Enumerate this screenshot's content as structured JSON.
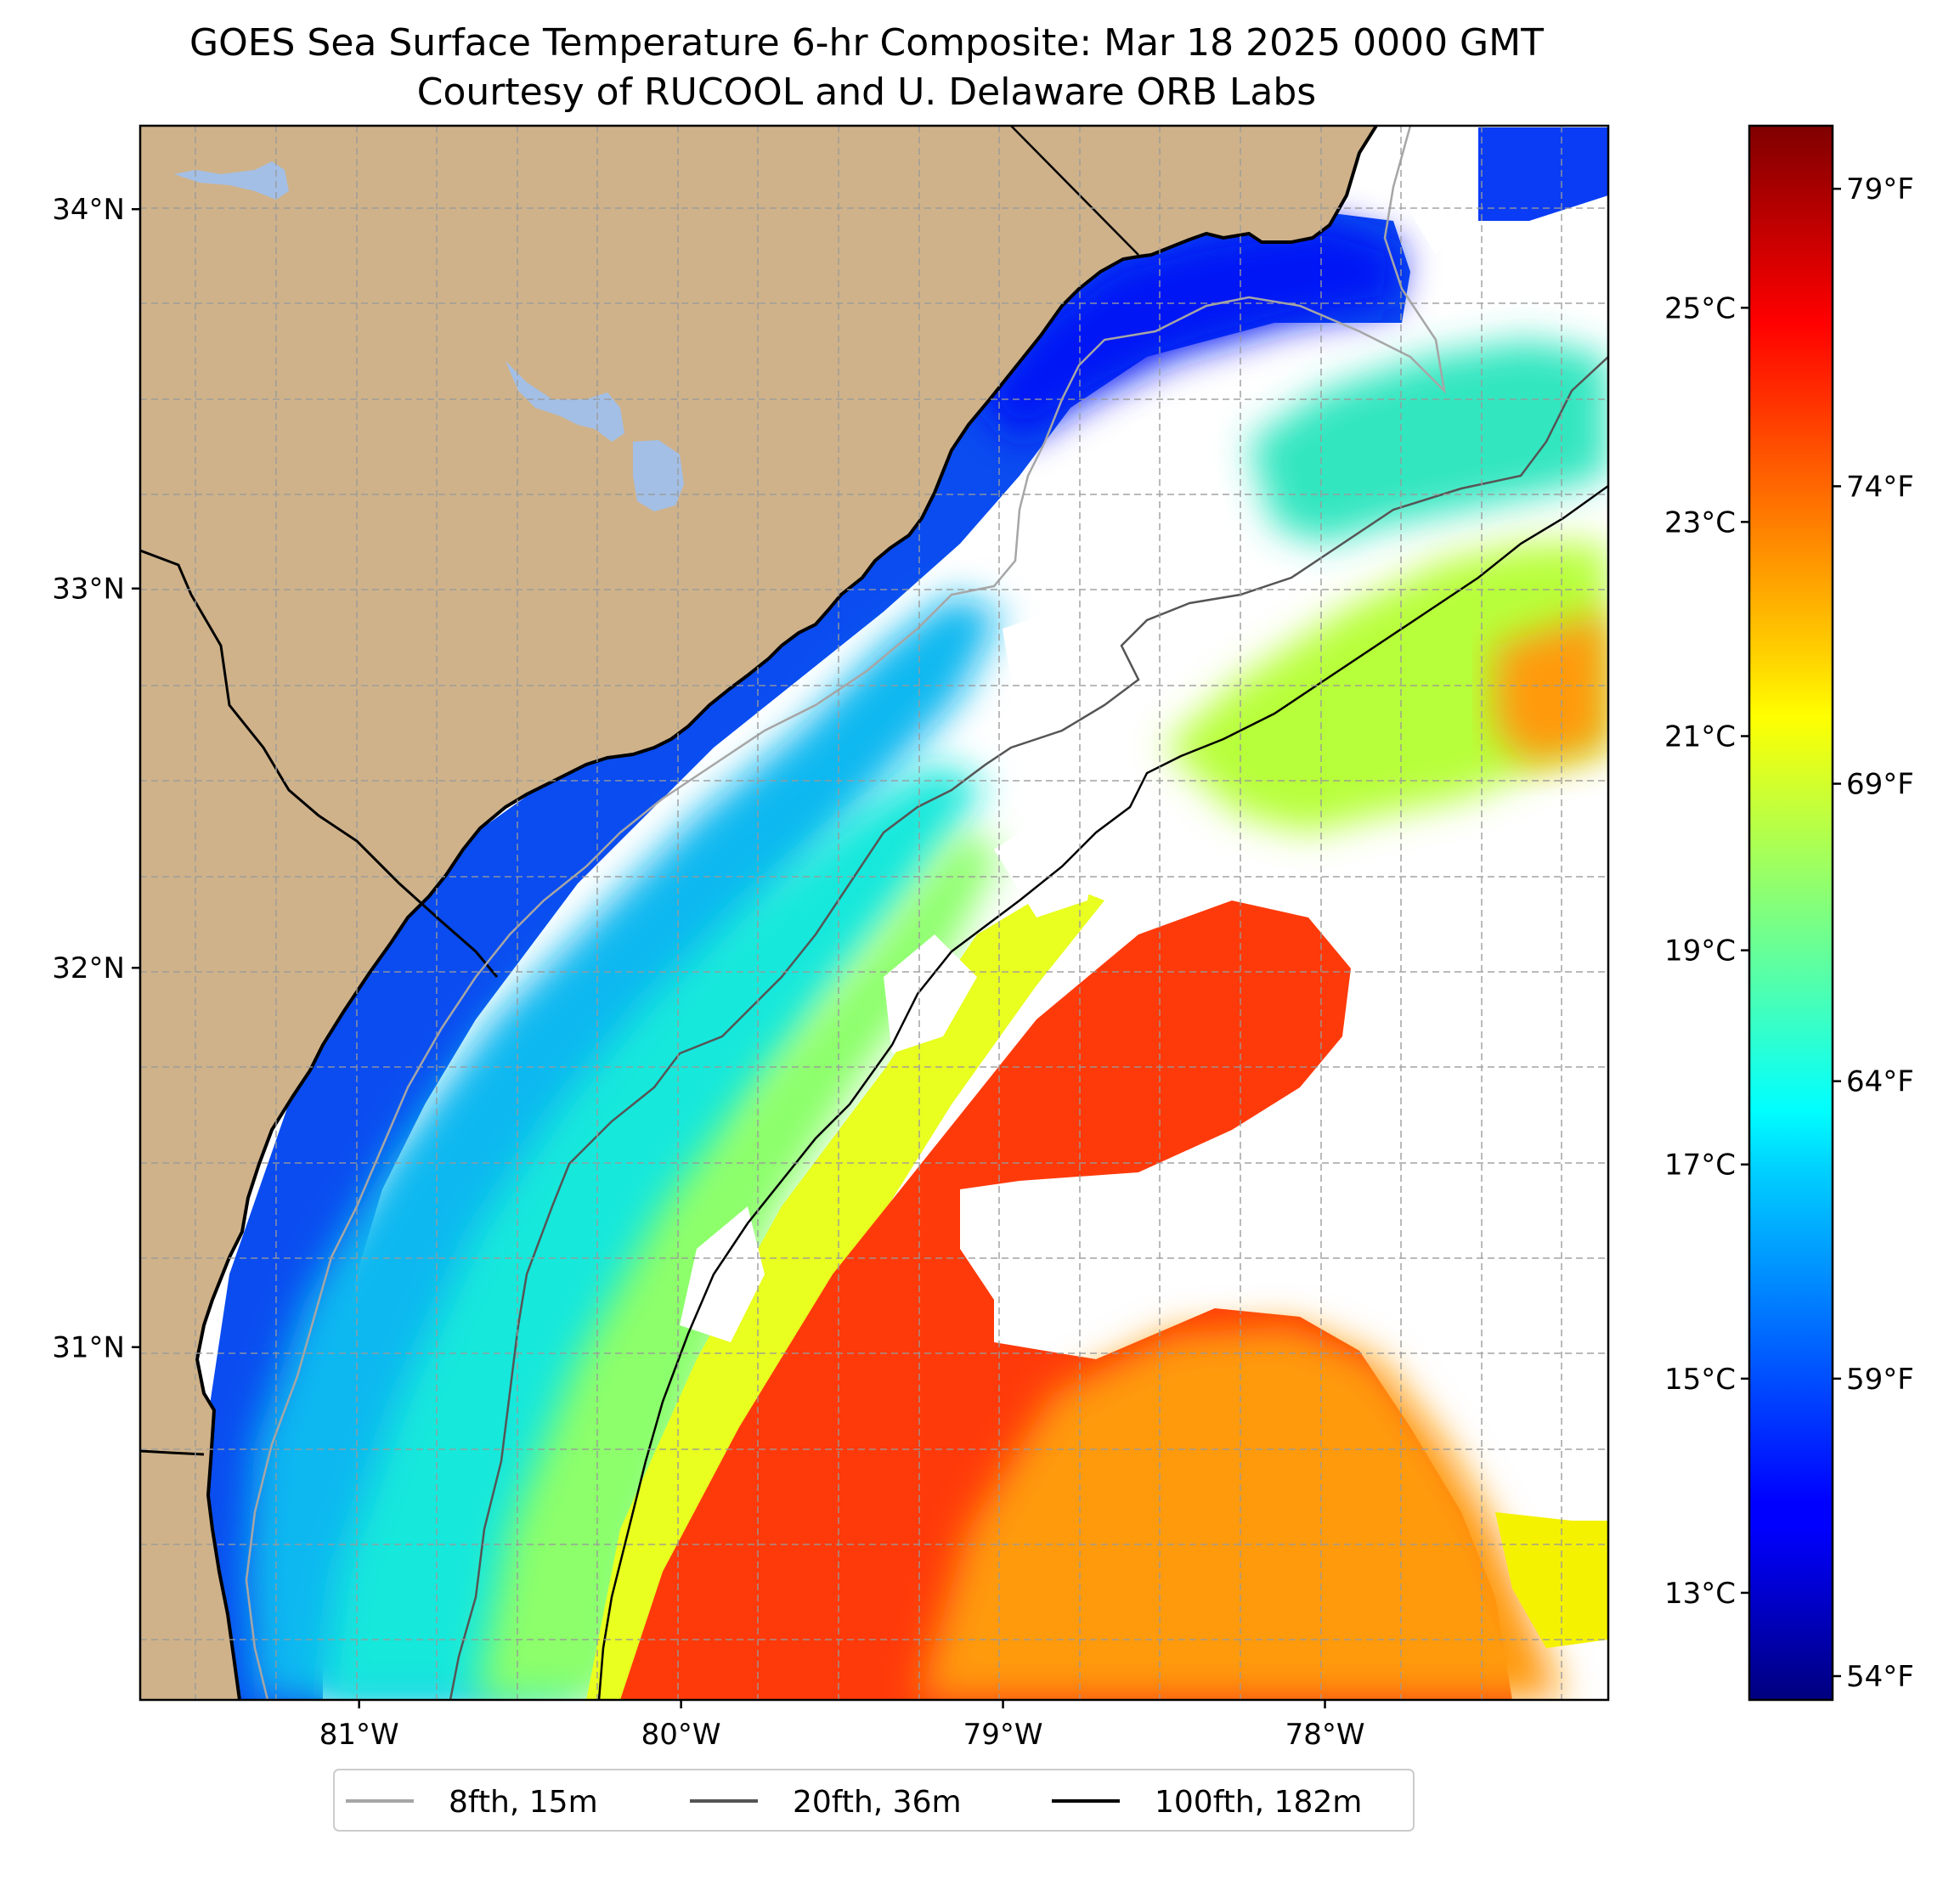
{
  "title_line1": "GOES Sea Surface Temperature 6-hr Composite: Mar 18 2025 0000 GMT",
  "title_line2": "Courtesy of RUCOOL and U. Delaware ORB Labs",
  "map": {
    "lon_range": [
      -81.68,
      -77.12
    ],
    "lat_range": [
      30.07,
      34.22
    ],
    "lat_ticks": [
      {
        "value": 34,
        "label": "34°N"
      },
      {
        "value": 33,
        "label": "33°N"
      },
      {
        "value": 32,
        "label": "32°N"
      },
      {
        "value": 31,
        "label": "31°N"
      }
    ],
    "lon_ticks": [
      {
        "value": -81,
        "label": "81°W"
      },
      {
        "value": -80,
        "label": "80°W"
      },
      {
        "value": -79,
        "label": "79°W"
      },
      {
        "value": -78,
        "label": "78°W"
      }
    ],
    "gridlines": "dashed",
    "colors": {
      "land": "#cfb28a",
      "lakes": "#a3bfe6",
      "no_data": "#ffffff",
      "isobath_8fth": "#a6a6a6",
      "isobath_20fth": "#555555",
      "isobath_100fth": "#000000"
    }
  },
  "colorbar": {
    "colormap": "jet",
    "celsius_range": [
      12.0,
      26.7
    ],
    "celsius_ticks": [
      {
        "value": 13,
        "label": "13°C"
      },
      {
        "value": 15,
        "label": "15°C"
      },
      {
        "value": 17,
        "label": "17°C"
      },
      {
        "value": 19,
        "label": "19°C"
      },
      {
        "value": 21,
        "label": "21°C"
      },
      {
        "value": 23,
        "label": "23°C"
      },
      {
        "value": 25,
        "label": "25°C"
      }
    ],
    "fahrenheit_ticks": [
      {
        "value": 54,
        "label": "54°F"
      },
      {
        "value": 59,
        "label": "59°F"
      },
      {
        "value": 64,
        "label": "64°F"
      },
      {
        "value": 69,
        "label": "69°F"
      },
      {
        "value": 74,
        "label": "74°F"
      },
      {
        "value": 79,
        "label": "79°F"
      }
    ]
  },
  "legend": {
    "placement": "below",
    "items": [
      {
        "label": "8fth, 15m",
        "color": "#a6a6a6"
      },
      {
        "label": "20fth, 36m",
        "color": "#555555"
      },
      {
        "label": "100fth, 182m",
        "color": "#000000"
      }
    ]
  }
}
